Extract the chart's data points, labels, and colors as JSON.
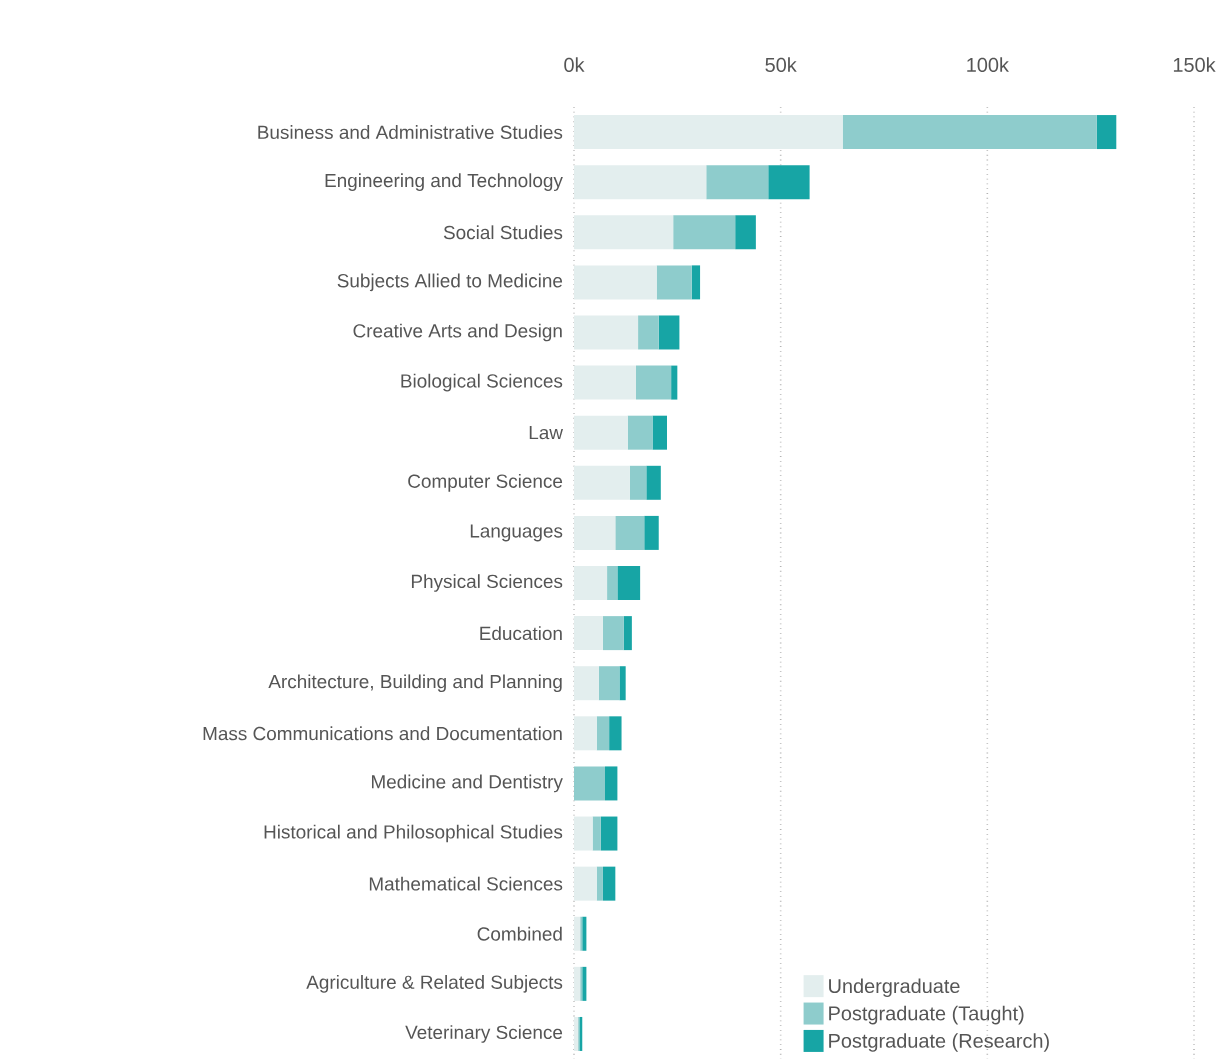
{
  "chart_data": {
    "type": "bar",
    "orientation": "horizontal",
    "stacked": true,
    "categories": [
      "Business and Administrative Studies",
      "Engineering and Technology",
      "Social Studies",
      "Subjects Allied to Medicine",
      "Creative Arts and Design",
      "Biological Sciences",
      "Law",
      "Computer Science",
      "Languages",
      "Physical Sciences",
      "Education",
      "Architecture, Building and Planning",
      "Mass Communications and Documentation",
      "Medicine and Dentistry",
      "Historical and Philosophical Studies",
      "Mathematical Sciences",
      "Combined",
      "Agriculture & Related Subjects",
      "Veterinary Science"
    ],
    "series": [
      {
        "name": "Undergraduate",
        "color": "#e3eeee",
        "values": [
          65,
          32,
          24,
          20,
          15.5,
          15,
          13,
          13.5,
          10,
          8,
          7,
          6,
          5.5,
          null,
          4.5,
          5.5,
          1.5,
          1.5,
          1
        ]
      },
      {
        "name": "Postgraduate (Taught)",
        "color": "#8ecccc",
        "values": [
          61.5,
          15,
          15,
          8.5,
          5,
          8.5,
          6,
          4,
          7,
          2.5,
          5,
          5,
          3,
          7.5,
          2,
          1.5,
          0.5,
          0.5,
          0.3
        ]
      },
      {
        "name": "Postgraduate (Research)",
        "color": "#17a5a5",
        "values": [
          4.7,
          10,
          5,
          2,
          5,
          1.5,
          3.5,
          3.5,
          3.5,
          5.5,
          2,
          1.5,
          3,
          3,
          4,
          3,
          1,
          1,
          0.7
        ]
      }
    ],
    "xlim": [
      0,
      150
    ],
    "xticks": [
      {
        "value": 0,
        "label": "0k"
      },
      {
        "value": 50,
        "label": "50k"
      },
      {
        "value": 100,
        "label": "100k"
      },
      {
        "value": 150,
        "label": "150k"
      }
    ],
    "grid": "x",
    "legend": "bottom right"
  }
}
